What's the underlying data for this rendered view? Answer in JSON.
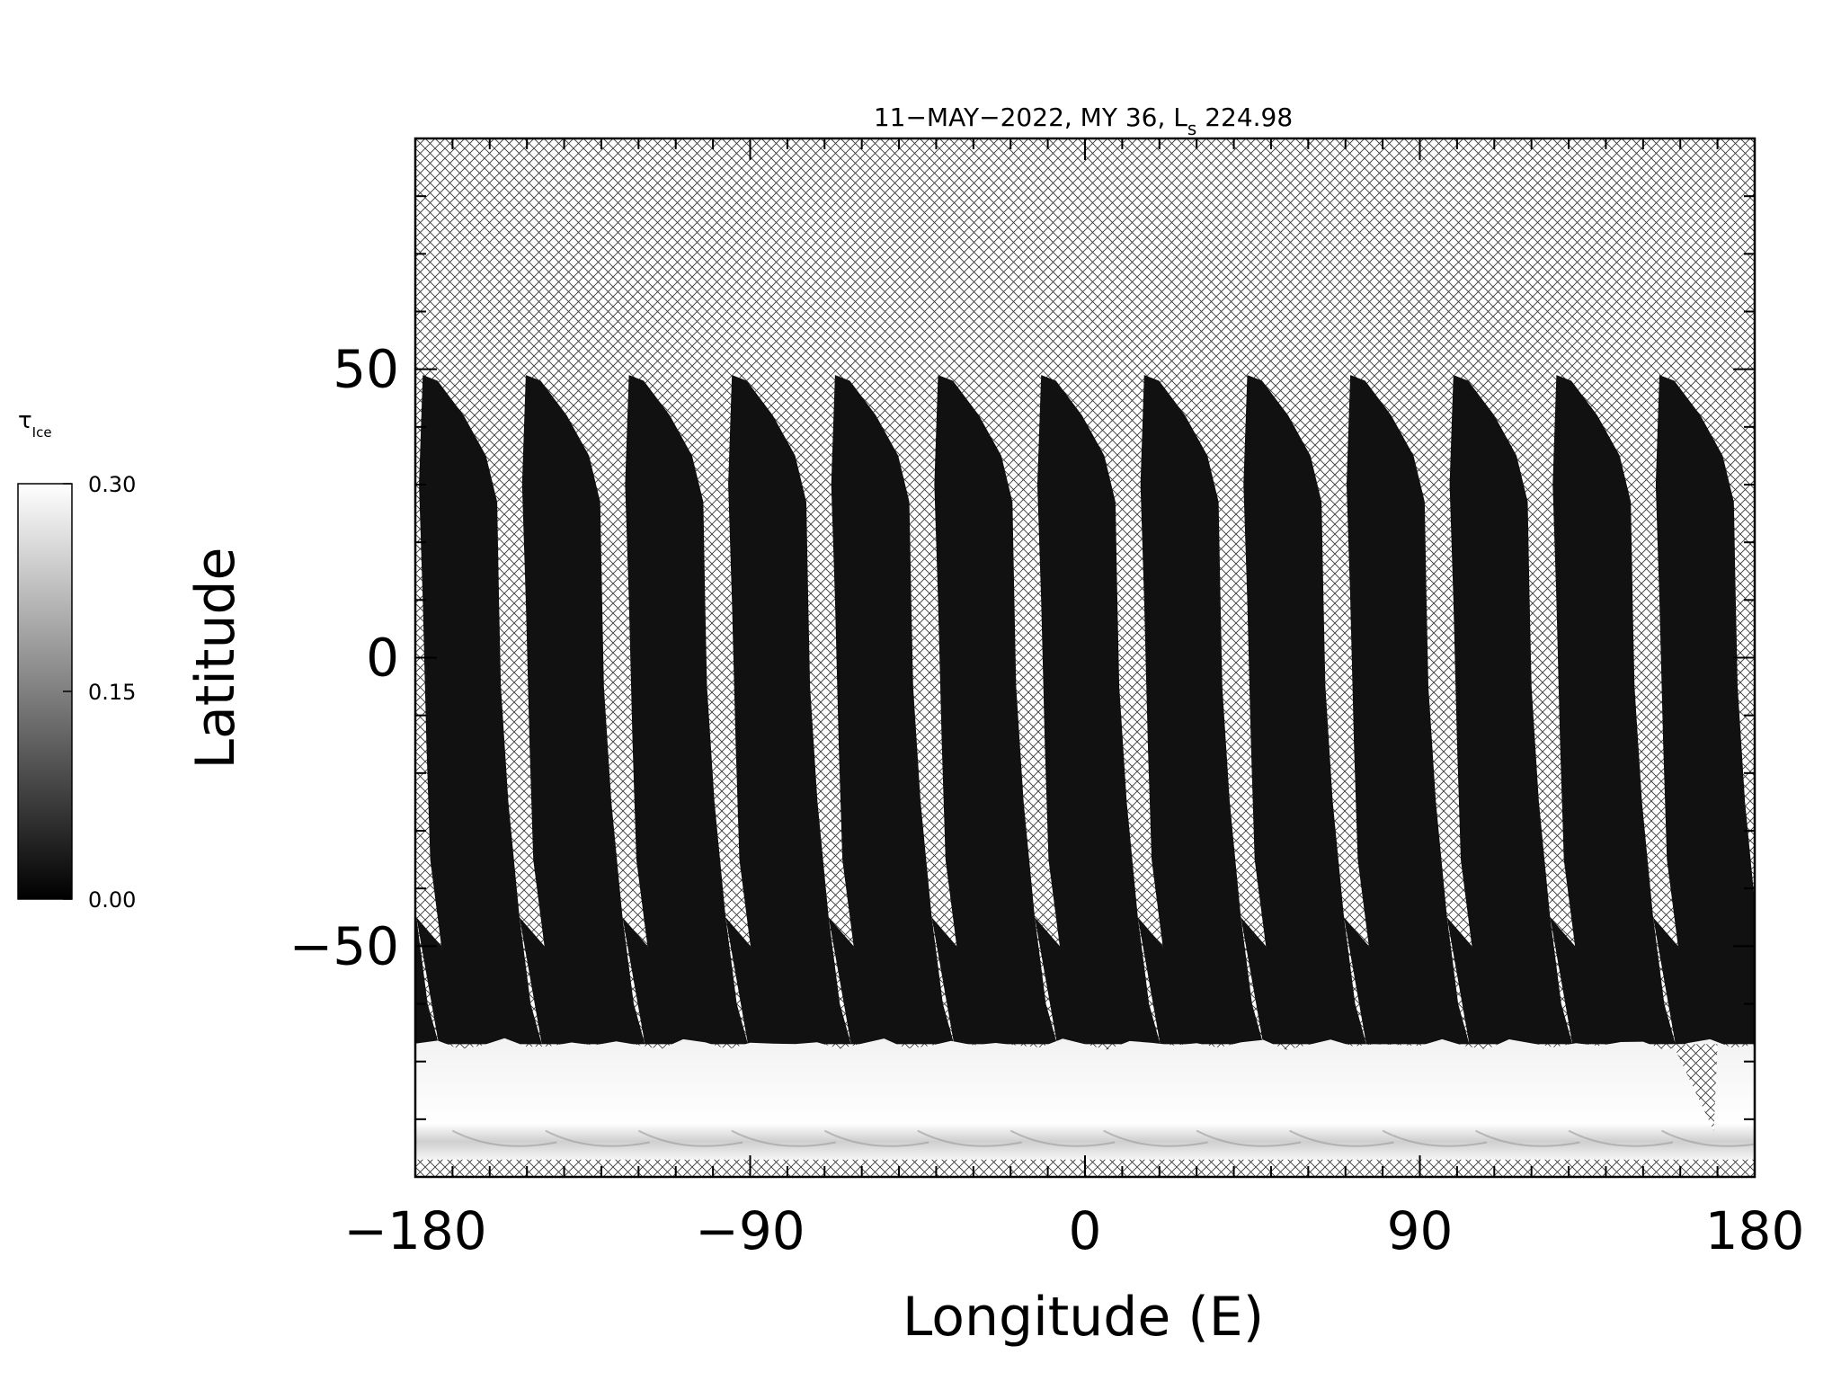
{
  "chart_data": {
    "type": "heatmap",
    "title_main": "11−MAY−2022, MY 36,  L",
    "title_sub": "s",
    "title_value": " 224.98",
    "xlabel": "Longitude (E)",
    "ylabel": "Latitude",
    "xlim": [
      -180,
      180
    ],
    "ylim": [
      -90,
      90
    ],
    "x_ticks": [
      {
        "value": -180,
        "label": "−180"
      },
      {
        "value": -90,
        "label": "−90"
      },
      {
        "value": 0,
        "label": "0"
      },
      {
        "value": 90,
        "label": "90"
      },
      {
        "value": 180,
        "label": "180"
      }
    ],
    "y_ticks": [
      {
        "value": 50,
        "label": "50"
      },
      {
        "value": 0,
        "label": "0"
      },
      {
        "value": -50,
        "label": "−50"
      }
    ],
    "x_minor_step": 10,
    "y_minor_step": 10,
    "colorbar": {
      "label_main": "τ",
      "label_sub": "Ice",
      "range": [
        0.0,
        0.3
      ],
      "ticks": [
        {
          "value": 0.3,
          "label": "0.30"
        },
        {
          "value": 0.15,
          "label": "0.15"
        },
        {
          "value": 0.0,
          "label": "0.00"
        }
      ],
      "color_low": "#000000",
      "color_high": "#ffffff"
    },
    "no_data_pattern": "cross-hatch",
    "swaths": {
      "count": 13,
      "first_top_lon": -178,
      "spacing_lon": 27.7,
      "top_lat": 49,
      "north_ice_value": 0.02,
      "south_edge_lat": -67,
      "polar_band": {
        "lat_from": -87,
        "lat_to": -67,
        "value": 0.29
      }
    }
  }
}
